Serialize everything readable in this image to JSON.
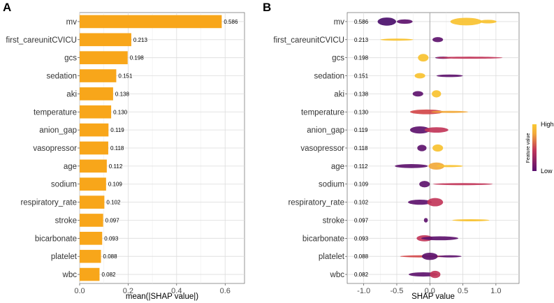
{
  "chart_data": [
    {
      "panel": "A",
      "type": "bar",
      "orientation": "horizontal",
      "categories": [
        "mv",
        "first_careunitCVICU",
        "gcs",
        "sedation",
        "aki",
        "temperature",
        "anion_gap",
        "vasopressor",
        "age",
        "sodium",
        "respiratory_rate",
        "stroke",
        "bicarbonate",
        "platelet",
        "wbc"
      ],
      "values": [
        0.586,
        0.213,
        0.198,
        0.151,
        0.138,
        0.13,
        0.119,
        0.118,
        0.112,
        0.109,
        0.102,
        0.097,
        0.093,
        0.088,
        0.082
      ],
      "value_labels": [
        "0.586",
        "0.213",
        "0.198",
        "0.151",
        "0.138",
        "0.130",
        "0.119",
        "0.118",
        "0.112",
        "0.109",
        "0.102",
        "0.097",
        "0.093",
        "0.088",
        "0.082"
      ],
      "xlabel": "mean(|SHAP value|)",
      "xlim": [
        0,
        0.68
      ],
      "xticks": [
        "0.0",
        "0.2",
        "0.4",
        "0.6"
      ],
      "bar_color": "#F8A61A"
    },
    {
      "panel": "B",
      "type": "scatter",
      "subtype": "beeswarm",
      "xlabel": "SHAP value",
      "xlim": [
        -1.25,
        1.35
      ],
      "xticks": [
        "-1.0",
        "-0.5",
        "0.0",
        "0.5",
        "1.0"
      ],
      "legend": {
        "title": "Feature value",
        "high": "High",
        "low": "Low",
        "placement": "right",
        "colors": [
          "#5A0F6E",
          "#C2375A",
          "#F2A93B",
          "#F9C932"
        ]
      },
      "features": [
        {
          "name": "mv",
          "label": "0.586",
          "blobs": [
            {
              "c": -0.65,
              "hw": 0.14,
              "h": 0.45,
              "col": "#4B0F6B"
            },
            {
              "c": -0.38,
              "hw": 0.12,
              "h": 0.25,
              "col": "#5E146E"
            },
            {
              "c": 0.55,
              "hw": 0.24,
              "h": 0.42,
              "col": "#F9C230"
            },
            {
              "c": 0.88,
              "hw": 0.13,
              "h": 0.2,
              "col": "#F9C230"
            }
          ]
        },
        {
          "name": "first_careunitCVICU",
          "label": "0.213",
          "blobs": [
            {
              "c": -0.5,
              "hw": 0.25,
              "h": 0.1,
              "col": "#F9C230"
            },
            {
              "c": 0.12,
              "hw": 0.08,
              "h": 0.28,
              "col": "#5E146E"
            }
          ]
        },
        {
          "name": "gcs",
          "label": "0.198",
          "blobs": [
            {
              "c": -0.1,
              "hw": 0.08,
              "h": 0.42,
              "col": "#F9C230"
            },
            {
              "c": 0.2,
              "hw": 0.12,
              "h": 0.12,
              "col": "#5E146E"
            },
            {
              "c": 0.6,
              "hw": 0.5,
              "h": 0.05,
              "col": "#C2375A"
            }
          ]
        },
        {
          "name": "sedation",
          "label": "0.151",
          "blobs": [
            {
              "c": -0.15,
              "hw": 0.08,
              "h": 0.3,
              "col": "#F9C230"
            },
            {
              "c": 0.3,
              "hw": 0.2,
              "h": 0.14,
              "col": "#5E146E"
            }
          ]
        },
        {
          "name": "aki",
          "label": "0.138",
          "blobs": [
            {
              "c": -0.18,
              "hw": 0.08,
              "h": 0.3,
              "col": "#5E146E"
            },
            {
              "c": 0.1,
              "hw": 0.07,
              "h": 0.4,
              "col": "#F9C230"
            }
          ]
        },
        {
          "name": "temperature",
          "label": "0.130",
          "blobs": [
            {
              "c": -0.05,
              "hw": 0.25,
              "h": 0.26,
              "col": "#D2484A"
            },
            {
              "c": 0.3,
              "hw": 0.28,
              "h": 0.1,
              "col": "#F2A93B"
            }
          ]
        },
        {
          "name": "anion_gap",
          "label": "0.119",
          "blobs": [
            {
              "c": -0.15,
              "hw": 0.15,
              "h": 0.4,
              "col": "#5E146E"
            },
            {
              "c": 0.1,
              "hw": 0.18,
              "h": 0.3,
              "col": "#C2375A"
            }
          ]
        },
        {
          "name": "vasopressor",
          "label": "0.118",
          "blobs": [
            {
              "c": -0.12,
              "hw": 0.07,
              "h": 0.36,
              "col": "#5E146E"
            },
            {
              "c": 0.12,
              "hw": 0.08,
              "h": 0.4,
              "col": "#F9C230"
            }
          ]
        },
        {
          "name": "age",
          "label": "0.112",
          "blobs": [
            {
              "c": -0.28,
              "hw": 0.25,
              "h": 0.22,
              "col": "#5E146E"
            },
            {
              "c": 0.1,
              "hw": 0.12,
              "h": 0.4,
              "col": "#F2A93B"
            },
            {
              "c": 0.3,
              "hw": 0.2,
              "h": 0.08,
              "col": "#F9C230"
            }
          ]
        },
        {
          "name": "sodium",
          "label": "0.109",
          "blobs": [
            {
              "c": -0.08,
              "hw": 0.08,
              "h": 0.36,
              "col": "#5E146E"
            },
            {
              "c": 0.5,
              "hw": 0.45,
              "h": 0.1,
              "col": "#C2375A"
            }
          ]
        },
        {
          "name": "respiratory_rate",
          "label": "0.102",
          "blobs": [
            {
              "c": -0.15,
              "hw": 0.18,
              "h": 0.28,
              "col": "#5E146E"
            },
            {
              "c": 0.08,
              "hw": 0.12,
              "h": 0.46,
              "col": "#C2375A"
            }
          ]
        },
        {
          "name": "stroke",
          "label": "0.097",
          "blobs": [
            {
              "c": -0.06,
              "hw": 0.03,
              "h": 0.25,
              "col": "#5E146E"
            },
            {
              "c": 0.62,
              "hw": 0.28,
              "h": 0.06,
              "col": "#F9C230"
            }
          ]
        },
        {
          "name": "bicarbonate",
          "label": "0.093",
          "blobs": [
            {
              "c": -0.08,
              "hw": 0.12,
              "h": 0.34,
              "col": "#C2375A"
            },
            {
              "c": 0.15,
              "hw": 0.28,
              "h": 0.22,
              "col": "#5E146E"
            }
          ]
        },
        {
          "name": "platelet",
          "label": "0.088",
          "blobs": [
            {
              "c": -0.1,
              "hw": 0.35,
              "h": 0.12,
              "col": "#D2484A"
            },
            {
              "c": 0.0,
              "hw": 0.12,
              "h": 0.4,
              "col": "#5E146E"
            },
            {
              "c": 0.3,
              "hw": 0.18,
              "h": 0.12,
              "col": "#5E146E"
            }
          ]
        },
        {
          "name": "wbc",
          "label": "0.082",
          "blobs": [
            {
              "c": -0.1,
              "hw": 0.22,
              "h": 0.24,
              "col": "#5E146E"
            },
            {
              "c": 0.08,
              "hw": 0.08,
              "h": 0.4,
              "col": "#C2375A"
            }
          ]
        }
      ]
    }
  ]
}
